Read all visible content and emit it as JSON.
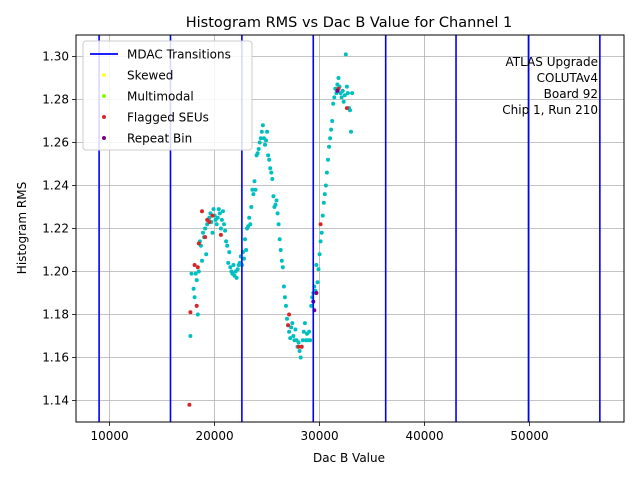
{
  "chart_data": {
    "type": "scatter",
    "title": "Histogram RMS vs Dac B Value for Channel 1",
    "xlabel": "Dac B Value",
    "ylabel": "Histogram RMS",
    "xlim": [
      6800,
      59000
    ],
    "ylim": [
      1.13,
      1.31
    ],
    "x_ticks": [
      10000,
      20000,
      30000,
      40000,
      50000
    ],
    "y_ticks": [
      1.14,
      1.16,
      1.18,
      1.2,
      1.22,
      1.24,
      1.26,
      1.28,
      1.3
    ],
    "grid": true,
    "legend_position": "top-left",
    "annotation_lines": [
      "ATLAS Upgrade",
      "COLUTAv4",
      "Board 92",
      "Chip 1, Run 210"
    ],
    "mdac_transitions": [
      9000,
      15800,
      22600,
      29400,
      36300,
      43000,
      49900,
      56700
    ],
    "legend": [
      {
        "label": "MDAC Transitions",
        "kind": "line",
        "color": "#0000ff"
      },
      {
        "label": "Skewed",
        "kind": "dot",
        "color": "#ffff33"
      },
      {
        "label": "Multimodal",
        "kind": "dot",
        "color": "#7fff00"
      },
      {
        "label": "Flagged SEUs",
        "kind": "dot",
        "color": "#d62728"
      },
      {
        "label": "Repeat Bin",
        "kind": "dot",
        "color": "#800080"
      }
    ],
    "series": [
      {
        "color": "#00bfbf",
        "points": [
          [
            17700,
            1.17
          ],
          [
            17800,
            1.199
          ],
          [
            18000,
            1.192
          ],
          [
            18100,
            1.188
          ],
          [
            18200,
            1.199
          ],
          [
            18300,
            1.196
          ],
          [
            18400,
            1.18
          ],
          [
            18500,
            1.2
          ],
          [
            18600,
            1.214
          ],
          [
            18700,
            1.212
          ],
          [
            18800,
            1.205
          ],
          [
            18900,
            1.218
          ],
          [
            19000,
            1.216
          ],
          [
            19100,
            1.22
          ],
          [
            19200,
            1.208
          ],
          [
            19300,
            1.222
          ],
          [
            19400,
            1.224
          ],
          [
            19500,
            1.225
          ],
          [
            19600,
            1.227
          ],
          [
            19700,
            1.223
          ],
          [
            19800,
            1.218
          ],
          [
            19900,
            1.229
          ],
          [
            20000,
            1.226
          ],
          [
            20100,
            1.224
          ],
          [
            20200,
            1.222
          ],
          [
            20300,
            1.225
          ],
          [
            20400,
            1.229
          ],
          [
            20500,
            1.227
          ],
          [
            20600,
            1.22
          ],
          [
            20700,
            1.224
          ],
          [
            20800,
            1.228
          ],
          [
            20900,
            1.222
          ],
          [
            21000,
            1.219
          ],
          [
            21100,
            1.214
          ],
          [
            21200,
            1.212
          ],
          [
            21300,
            1.204
          ],
          [
            21400,
            1.209
          ],
          [
            21500,
            1.202
          ],
          [
            21600,
            1.2
          ],
          [
            21700,
            1.199
          ],
          [
            21800,
            1.203
          ],
          [
            21900,
            1.198
          ],
          [
            22000,
            1.2
          ],
          [
            22100,
            1.197
          ],
          [
            22200,
            1.201
          ],
          [
            22300,
            1.203
          ],
          [
            22400,
            1.204
          ],
          [
            22500,
            1.207
          ],
          [
            22600,
            1.203
          ],
          [
            22700,
            1.209
          ],
          [
            22800,
            1.206
          ],
          [
            22900,
            1.215
          ],
          [
            23000,
            1.21
          ],
          [
            23100,
            1.22
          ],
          [
            23200,
            1.221
          ],
          [
            23300,
            1.225
          ],
          [
            23400,
            1.222
          ],
          [
            23500,
            1.23
          ],
          [
            23600,
            1.238
          ],
          [
            23700,
            1.236
          ],
          [
            23800,
            1.242
          ],
          [
            23900,
            1.238
          ],
          [
            24000,
            1.254
          ],
          [
            24100,
            1.255
          ],
          [
            24200,
            1.257
          ],
          [
            24300,
            1.26
          ],
          [
            24400,
            1.262
          ],
          [
            24500,
            1.265
          ],
          [
            24600,
            1.268
          ],
          [
            24700,
            1.262
          ],
          [
            24800,
            1.259
          ],
          [
            24900,
            1.261
          ],
          [
            25000,
            1.265
          ],
          [
            25100,
            1.254
          ],
          [
            25200,
            1.252
          ],
          [
            25300,
            1.248
          ],
          [
            25400,
            1.246
          ],
          [
            25500,
            1.243
          ],
          [
            25600,
            1.235
          ],
          [
            25700,
            1.23
          ],
          [
            25800,
            1.231
          ],
          [
            25900,
            1.233
          ],
          [
            26000,
            1.227
          ],
          [
            26100,
            1.222
          ],
          [
            26200,
            1.215
          ],
          [
            26300,
            1.21
          ],
          [
            26400,
            1.205
          ],
          [
            26500,
            1.202
          ],
          [
            26600,
            1.193
          ],
          [
            26700,
            1.188
          ],
          [
            26800,
            1.184
          ],
          [
            26900,
            1.178
          ],
          [
            27000,
            1.175
          ],
          [
            27100,
            1.172
          ],
          [
            27200,
            1.169
          ],
          [
            27300,
            1.174
          ],
          [
            27400,
            1.176
          ],
          [
            27500,
            1.17
          ],
          [
            27600,
            1.168
          ],
          [
            27700,
            1.173
          ],
          [
            27800,
            1.168
          ],
          [
            27900,
            1.165
          ],
          [
            28000,
            1.167
          ],
          [
            28100,
            1.163
          ],
          [
            28200,
            1.16
          ],
          [
            28300,
            1.165
          ],
          [
            28400,
            1.168
          ],
          [
            28500,
            1.172
          ],
          [
            28600,
            1.176
          ],
          [
            28700,
            1.168
          ],
          [
            28800,
            1.171
          ],
          [
            28900,
            1.168
          ],
          [
            29000,
            1.172
          ],
          [
            29100,
            1.168
          ],
          [
            29200,
            1.184
          ],
          [
            29300,
            1.188
          ],
          [
            29400,
            1.19
          ],
          [
            29500,
            1.193
          ],
          [
            29600,
            1.191
          ],
          [
            29700,
            1.203
          ],
          [
            29800,
            1.195
          ],
          [
            29900,
            1.201
          ],
          [
            30000,
            1.208
          ],
          [
            30100,
            1.214
          ],
          [
            30200,
            1.218
          ],
          [
            30300,
            1.226
          ],
          [
            30400,
            1.232
          ],
          [
            30500,
            1.236
          ],
          [
            30600,
            1.24
          ],
          [
            30700,
            1.246
          ],
          [
            30800,
            1.252
          ],
          [
            30900,
            1.258
          ],
          [
            31000,
            1.262
          ],
          [
            31100,
            1.266
          ],
          [
            31200,
            1.27
          ],
          [
            31300,
            1.278
          ],
          [
            31400,
            1.281
          ],
          [
            31500,
            1.285
          ],
          [
            31600,
            1.283
          ],
          [
            31700,
            1.287
          ],
          [
            31800,
            1.29
          ],
          [
            31900,
            1.286
          ],
          [
            32000,
            1.283
          ],
          [
            32100,
            1.281
          ],
          [
            32200,
            1.284
          ],
          [
            32300,
            1.279
          ],
          [
            32400,
            1.282
          ],
          [
            32500,
            1.301
          ],
          [
            32600,
            1.286
          ],
          [
            32700,
            1.283
          ],
          [
            32800,
            1.276
          ],
          [
            32900,
            1.275
          ],
          [
            33000,
            1.265
          ],
          [
            33100,
            1.283
          ]
        ]
      },
      {
        "color": "#d62728",
        "points": [
          [
            17600,
            1.138
          ],
          [
            17700,
            1.181
          ],
          [
            18100,
            1.203
          ],
          [
            18300,
            1.184
          ],
          [
            18400,
            1.202
          ],
          [
            18500,
            1.213
          ],
          [
            18800,
            1.228
          ],
          [
            19100,
            1.216
          ],
          [
            19300,
            1.224
          ],
          [
            19500,
            1.223
          ],
          [
            19800,
            1.226
          ],
          [
            20600,
            1.217
          ],
          [
            27000,
            1.175
          ],
          [
            27100,
            1.18
          ],
          [
            28000,
            1.165
          ],
          [
            28300,
            1.165
          ],
          [
            30100,
            1.222
          ],
          [
            31800,
            1.285
          ],
          [
            32600,
            1.276
          ]
        ]
      },
      {
        "color": "#800080",
        "points": [
          [
            29400,
            1.186
          ],
          [
            29500,
            1.182
          ],
          [
            29700,
            1.19
          ],
          [
            31700,
            1.284
          ]
        ]
      }
    ]
  }
}
